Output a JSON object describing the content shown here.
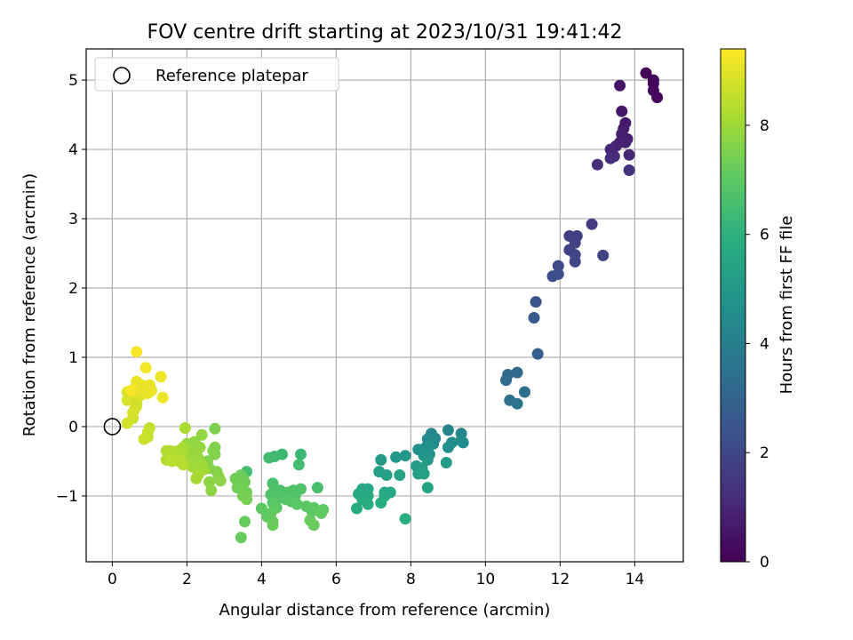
{
  "chart_data": {
    "type": "scatter",
    "title": "FOV centre drift starting at 2023/10/31 19:41:42",
    "xlabel": "Angular distance from reference (arcmin)",
    "ylabel": "Rotation from reference (arcmin)",
    "xlim": [
      -0.7,
      15.3
    ],
    "ylim": [
      -1.95,
      5.45
    ],
    "xticks": [
      0,
      2,
      4,
      6,
      8,
      10,
      12,
      14
    ],
    "yticks": [
      -1,
      0,
      1,
      2,
      3,
      4,
      5
    ],
    "grid": true,
    "legend": {
      "position": "upper left",
      "entries": [
        "Reference platepar"
      ]
    },
    "reference_point": {
      "x": 0,
      "y": 0,
      "label": "Reference platepar"
    },
    "colorbar": {
      "label": "Hours from first FF file",
      "range": [
        0,
        9.4
      ],
      "ticks": [
        0,
        2,
        4,
        6,
        8
      ],
      "colormap": "viridis"
    },
    "series": [
      {
        "points": [
          {
            "x": 14.3,
            "y": 5.1,
            "c": 0.05
          },
          {
            "x": 14.5,
            "y": 5.0,
            "c": 0.1
          },
          {
            "x": 14.5,
            "y": 4.95,
            "c": 0.15
          },
          {
            "x": 14.5,
            "y": 4.85,
            "c": 0.2
          },
          {
            "x": 14.6,
            "y": 4.75,
            "c": 0.25
          },
          {
            "x": 13.6,
            "y": 4.92,
            "c": 0.5
          },
          {
            "x": 13.65,
            "y": 4.55,
            "c": 0.6
          },
          {
            "x": 13.75,
            "y": 4.38,
            "c": 0.65
          },
          {
            "x": 13.7,
            "y": 4.3,
            "c": 0.7
          },
          {
            "x": 13.65,
            "y": 4.22,
            "c": 0.75
          },
          {
            "x": 13.8,
            "y": 4.15,
            "c": 0.8
          },
          {
            "x": 13.6,
            "y": 4.1,
            "c": 0.85
          },
          {
            "x": 13.75,
            "y": 4.1,
            "c": 0.9
          },
          {
            "x": 13.5,
            "y": 4.05,
            "c": 0.95
          },
          {
            "x": 13.35,
            "y": 4.0,
            "c": 1.0
          },
          {
            "x": 13.85,
            "y": 3.92,
            "c": 1.05
          },
          {
            "x": 13.45,
            "y": 3.9,
            "c": 1.1
          },
          {
            "x": 13.35,
            "y": 3.87,
            "c": 1.15
          },
          {
            "x": 13.0,
            "y": 3.78,
            "c": 1.2
          },
          {
            "x": 13.85,
            "y": 3.7,
            "c": 1.3
          },
          {
            "x": 12.85,
            "y": 2.92,
            "c": 1.6
          },
          {
            "x": 12.25,
            "y": 2.75,
            "c": 1.7
          },
          {
            "x": 12.45,
            "y": 2.75,
            "c": 1.75
          },
          {
            "x": 12.4,
            "y": 2.65,
            "c": 1.8
          },
          {
            "x": 12.25,
            "y": 2.55,
            "c": 1.85
          },
          {
            "x": 13.15,
            "y": 2.47,
            "c": 1.9
          },
          {
            "x": 12.4,
            "y": 2.48,
            "c": 1.95
          },
          {
            "x": 12.4,
            "y": 2.38,
            "c": 2.0
          },
          {
            "x": 11.95,
            "y": 2.32,
            "c": 2.1
          },
          {
            "x": 11.95,
            "y": 2.2,
            "c": 2.2
          },
          {
            "x": 11.8,
            "y": 2.17,
            "c": 2.25
          },
          {
            "x": 11.35,
            "y": 1.8,
            "c": 2.5
          },
          {
            "x": 11.3,
            "y": 1.57,
            "c": 2.6
          },
          {
            "x": 11.4,
            "y": 1.05,
            "c": 2.9
          },
          {
            "x": 10.85,
            "y": 0.78,
            "c": 3.2
          },
          {
            "x": 10.6,
            "y": 0.75,
            "c": 3.25
          },
          {
            "x": 10.55,
            "y": 0.67,
            "c": 3.3
          },
          {
            "x": 11.05,
            "y": 0.5,
            "c": 3.4
          },
          {
            "x": 10.65,
            "y": 0.38,
            "c": 3.5
          },
          {
            "x": 10.85,
            "y": 0.33,
            "c": 3.55
          },
          {
            "x": 9.0,
            "y": -0.05,
            "c": 4.2
          },
          {
            "x": 9.35,
            "y": -0.1,
            "c": 4.25
          },
          {
            "x": 8.55,
            "y": -0.1,
            "c": 4.3
          },
          {
            "x": 8.65,
            "y": -0.17,
            "c": 4.35
          },
          {
            "x": 8.45,
            "y": -0.18,
            "c": 4.4
          },
          {
            "x": 9.35,
            "y": -0.2,
            "c": 4.45
          },
          {
            "x": 9.1,
            "y": -0.23,
            "c": 4.5
          },
          {
            "x": 8.55,
            "y": -0.2,
            "c": 4.5
          },
          {
            "x": 9.4,
            "y": -0.23,
            "c": 4.55
          },
          {
            "x": 8.6,
            "y": -0.25,
            "c": 4.6
          },
          {
            "x": 9.0,
            "y": -0.3,
            "c": 4.65
          },
          {
            "x": 8.4,
            "y": -0.3,
            "c": 4.7
          },
          {
            "x": 8.2,
            "y": -0.33,
            "c": 4.75
          },
          {
            "x": 8.5,
            "y": -0.4,
            "c": 4.8
          },
          {
            "x": 8.35,
            "y": -0.42,
            "c": 4.85
          },
          {
            "x": 7.85,
            "y": -0.42,
            "c": 4.9
          },
          {
            "x": 7.6,
            "y": -0.44,
            "c": 4.95
          },
          {
            "x": 8.45,
            "y": -0.48,
            "c": 5.0
          },
          {
            "x": 7.2,
            "y": -0.48,
            "c": 5.05
          },
          {
            "x": 8.95,
            "y": -0.52,
            "c": 5.1
          },
          {
            "x": 8.15,
            "y": -0.57,
            "c": 5.15
          },
          {
            "x": 8.3,
            "y": -0.6,
            "c": 5.2
          },
          {
            "x": 7.15,
            "y": -0.65,
            "c": 5.25
          },
          {
            "x": 8.2,
            "y": -0.68,
            "c": 5.3
          },
          {
            "x": 8.35,
            "y": -0.68,
            "c": 5.35
          },
          {
            "x": 7.35,
            "y": -0.7,
            "c": 5.4
          },
          {
            "x": 7.7,
            "y": -0.7,
            "c": 5.4
          },
          {
            "x": 8.45,
            "y": -0.88,
            "c": 5.45
          },
          {
            "x": 6.85,
            "y": -0.9,
            "c": 5.5
          },
          {
            "x": 6.7,
            "y": -0.9,
            "c": 5.55
          },
          {
            "x": 7.3,
            "y": -0.95,
            "c": 5.6
          },
          {
            "x": 7.45,
            "y": -0.95,
            "c": 5.6
          },
          {
            "x": 6.6,
            "y": -0.97,
            "c": 5.65
          },
          {
            "x": 6.85,
            "y": -1.0,
            "c": 5.7
          },
          {
            "x": 7.3,
            "y": -1.0,
            "c": 5.7
          },
          {
            "x": 6.7,
            "y": -1.05,
            "c": 5.75
          },
          {
            "x": 7.2,
            "y": -1.1,
            "c": 5.8
          },
          {
            "x": 6.85,
            "y": -1.12,
            "c": 5.8
          },
          {
            "x": 6.55,
            "y": -1.18,
            "c": 5.85
          },
          {
            "x": 7.85,
            "y": -1.33,
            "c": 5.9
          },
          {
            "x": 5.05,
            "y": -0.4,
            "c": 6.3
          },
          {
            "x": 4.55,
            "y": -0.4,
            "c": 6.35
          },
          {
            "x": 4.35,
            "y": -0.43,
            "c": 6.4
          },
          {
            "x": 4.2,
            "y": -0.45,
            "c": 6.45
          },
          {
            "x": 5.0,
            "y": -0.55,
            "c": 6.5
          },
          {
            "x": 3.6,
            "y": -0.65,
            "c": 6.55
          },
          {
            "x": 4.3,
            "y": -0.82,
            "c": 6.6
          },
          {
            "x": 5.5,
            "y": -0.88,
            "c": 6.6
          },
          {
            "x": 4.35,
            "y": -0.9,
            "c": 6.65
          },
          {
            "x": 4.5,
            "y": -0.92,
            "c": 6.65
          },
          {
            "x": 4.85,
            "y": -0.92,
            "c": 6.7
          },
          {
            "x": 5.05,
            "y": -0.9,
            "c": 6.7
          },
          {
            "x": 4.7,
            "y": -0.95,
            "c": 6.75
          },
          {
            "x": 4.25,
            "y": -0.98,
            "c": 6.75
          },
          {
            "x": 4.55,
            "y": -1.0,
            "c": 6.8
          },
          {
            "x": 4.9,
            "y": -1.0,
            "c": 6.8
          },
          {
            "x": 4.4,
            "y": -1.05,
            "c": 6.85
          },
          {
            "x": 4.65,
            "y": -1.05,
            "c": 6.85
          },
          {
            "x": 4.8,
            "y": -1.08,
            "c": 6.9
          },
          {
            "x": 4.3,
            "y": -1.1,
            "c": 6.9
          },
          {
            "x": 4.95,
            "y": -1.12,
            "c": 6.95
          },
          {
            "x": 5.2,
            "y": -1.15,
            "c": 6.95
          },
          {
            "x": 4.4,
            "y": -1.17,
            "c": 7.0
          },
          {
            "x": 5.4,
            "y": -1.17,
            "c": 7.0
          },
          {
            "x": 4.0,
            "y": -1.18,
            "c": 7.05
          },
          {
            "x": 5.65,
            "y": -1.2,
            "c": 7.05
          },
          {
            "x": 5.35,
            "y": -1.22,
            "c": 7.05
          },
          {
            "x": 4.25,
            "y": -1.25,
            "c": 7.1
          },
          {
            "x": 5.6,
            "y": -1.25,
            "c": 7.1
          },
          {
            "x": 4.15,
            "y": -1.3,
            "c": 7.1
          },
          {
            "x": 5.3,
            "y": -1.35,
            "c": 7.15
          },
          {
            "x": 4.3,
            "y": -1.37,
            "c": 7.15
          },
          {
            "x": 3.55,
            "y": -1.37,
            "c": 7.15
          },
          {
            "x": 5.4,
            "y": -1.42,
            "c": 7.2
          },
          {
            "x": 4.3,
            "y": -1.42,
            "c": 7.2
          },
          {
            "x": 3.45,
            "y": -1.6,
            "c": 7.2
          },
          {
            "x": 3.45,
            "y": -0.7,
            "c": 7.25
          },
          {
            "x": 3.5,
            "y": -0.75,
            "c": 7.25
          },
          {
            "x": 3.3,
            "y": -0.75,
            "c": 7.3
          },
          {
            "x": 3.55,
            "y": -0.8,
            "c": 7.3
          },
          {
            "x": 3.35,
            "y": -0.88,
            "c": 7.35
          },
          {
            "x": 3.6,
            "y": -0.95,
            "c": 7.35
          },
          {
            "x": 3.5,
            "y": -1.0,
            "c": 7.4
          },
          {
            "x": 3.6,
            "y": -1.05,
            "c": 7.4
          },
          {
            "x": 2.75,
            "y": -0.03,
            "c": 7.5
          },
          {
            "x": 2.75,
            "y": -0.3,
            "c": 7.55
          },
          {
            "x": 2.7,
            "y": -0.35,
            "c": 7.55
          },
          {
            "x": 2.75,
            "y": -0.4,
            "c": 7.6
          },
          {
            "x": 2.55,
            "y": -0.5,
            "c": 7.6
          },
          {
            "x": 2.6,
            "y": -0.6,
            "c": 7.65
          },
          {
            "x": 2.8,
            "y": -0.65,
            "c": 7.65
          },
          {
            "x": 2.85,
            "y": -0.72,
            "c": 7.7
          },
          {
            "x": 2.9,
            "y": -0.78,
            "c": 7.7
          },
          {
            "x": 2.6,
            "y": -0.8,
            "c": 7.75
          },
          {
            "x": 2.65,
            "y": -0.92,
            "c": 7.75
          },
          {
            "x": 2.4,
            "y": -0.12,
            "c": 7.8
          },
          {
            "x": 2.2,
            "y": -0.22,
            "c": 7.8
          },
          {
            "x": 2.0,
            "y": -0.25,
            "c": 7.85
          },
          {
            "x": 2.35,
            "y": -0.3,
            "c": 7.85
          },
          {
            "x": 2.1,
            "y": -0.35,
            "c": 7.9
          },
          {
            "x": 2.25,
            "y": -0.38,
            "c": 7.9
          },
          {
            "x": 1.95,
            "y": -0.42,
            "c": 7.95
          },
          {
            "x": 2.3,
            "y": -0.45,
            "c": 7.95
          },
          {
            "x": 2.05,
            "y": -0.5,
            "c": 8.0
          },
          {
            "x": 2.4,
            "y": -0.55,
            "c": 8.0
          },
          {
            "x": 2.15,
            "y": -0.58,
            "c": 8.05
          },
          {
            "x": 2.45,
            "y": -0.62,
            "c": 8.05
          },
          {
            "x": 2.3,
            "y": -0.7,
            "c": 8.1
          },
          {
            "x": 2.25,
            "y": -0.75,
            "c": 8.1
          },
          {
            "x": 1.95,
            "y": -0.02,
            "c": 8.15
          },
          {
            "x": 1.9,
            "y": -0.3,
            "c": 8.15
          },
          {
            "x": 1.75,
            "y": -0.35,
            "c": 8.2
          },
          {
            "x": 1.85,
            "y": -0.4,
            "c": 8.2
          },
          {
            "x": 1.55,
            "y": -0.35,
            "c": 8.25
          },
          {
            "x": 1.45,
            "y": -0.35,
            "c": 8.25
          },
          {
            "x": 1.65,
            "y": -0.45,
            "c": 8.3
          },
          {
            "x": 1.45,
            "y": -0.48,
            "c": 8.3
          },
          {
            "x": 1.8,
            "y": -0.5,
            "c": 8.35
          },
          {
            "x": 1.9,
            "y": -0.55,
            "c": 8.35
          },
          {
            "x": 1.6,
            "y": -0.5,
            "c": 8.4
          },
          {
            "x": 1.0,
            "y": -0.02,
            "c": 8.55
          },
          {
            "x": 0.95,
            "y": -0.08,
            "c": 8.6
          },
          {
            "x": 0.95,
            "y": -0.15,
            "c": 8.6
          },
          {
            "x": 0.85,
            "y": -0.18,
            "c": 8.65
          },
          {
            "x": 0.55,
            "y": 0.12,
            "c": 8.7
          },
          {
            "x": 0.65,
            "y": 0.3,
            "c": 8.75
          },
          {
            "x": 0.65,
            "y": 0.37,
            "c": 8.75
          },
          {
            "x": 0.6,
            "y": 0.25,
            "c": 8.8
          },
          {
            "x": 0.4,
            "y": 0.05,
            "c": 8.8
          },
          {
            "x": 0.55,
            "y": 0.2,
            "c": 8.85
          },
          {
            "x": 0.4,
            "y": 0.38,
            "c": 8.85
          },
          {
            "x": 0.45,
            "y": 0.45,
            "c": 8.9
          },
          {
            "x": 0.4,
            "y": 0.5,
            "c": 8.9
          },
          {
            "x": 0.55,
            "y": 0.5,
            "c": 8.95
          },
          {
            "x": 0.75,
            "y": 0.45,
            "c": 8.95
          },
          {
            "x": 0.7,
            "y": 0.55,
            "c": 9.0
          },
          {
            "x": 0.65,
            "y": 0.6,
            "c": 9.0
          },
          {
            "x": 0.8,
            "y": 0.6,
            "c": 9.05
          },
          {
            "x": 0.95,
            "y": 0.55,
            "c": 9.05
          },
          {
            "x": 1.05,
            "y": 0.52,
            "c": 9.1
          },
          {
            "x": 1.0,
            "y": 0.6,
            "c": 9.1
          },
          {
            "x": 0.65,
            "y": 0.65,
            "c": 9.15
          },
          {
            "x": 0.95,
            "y": 0.48,
            "c": 9.15
          },
          {
            "x": 1.3,
            "y": 0.72,
            "c": 9.2
          },
          {
            "x": 1.35,
            "y": 0.42,
            "c": 9.2
          },
          {
            "x": 0.9,
            "y": 0.85,
            "c": 9.25
          },
          {
            "x": 0.65,
            "y": 1.08,
            "c": 9.3
          },
          {
            "x": 0.5,
            "y": 0.52,
            "c": 9.3
          }
        ]
      }
    ]
  }
}
